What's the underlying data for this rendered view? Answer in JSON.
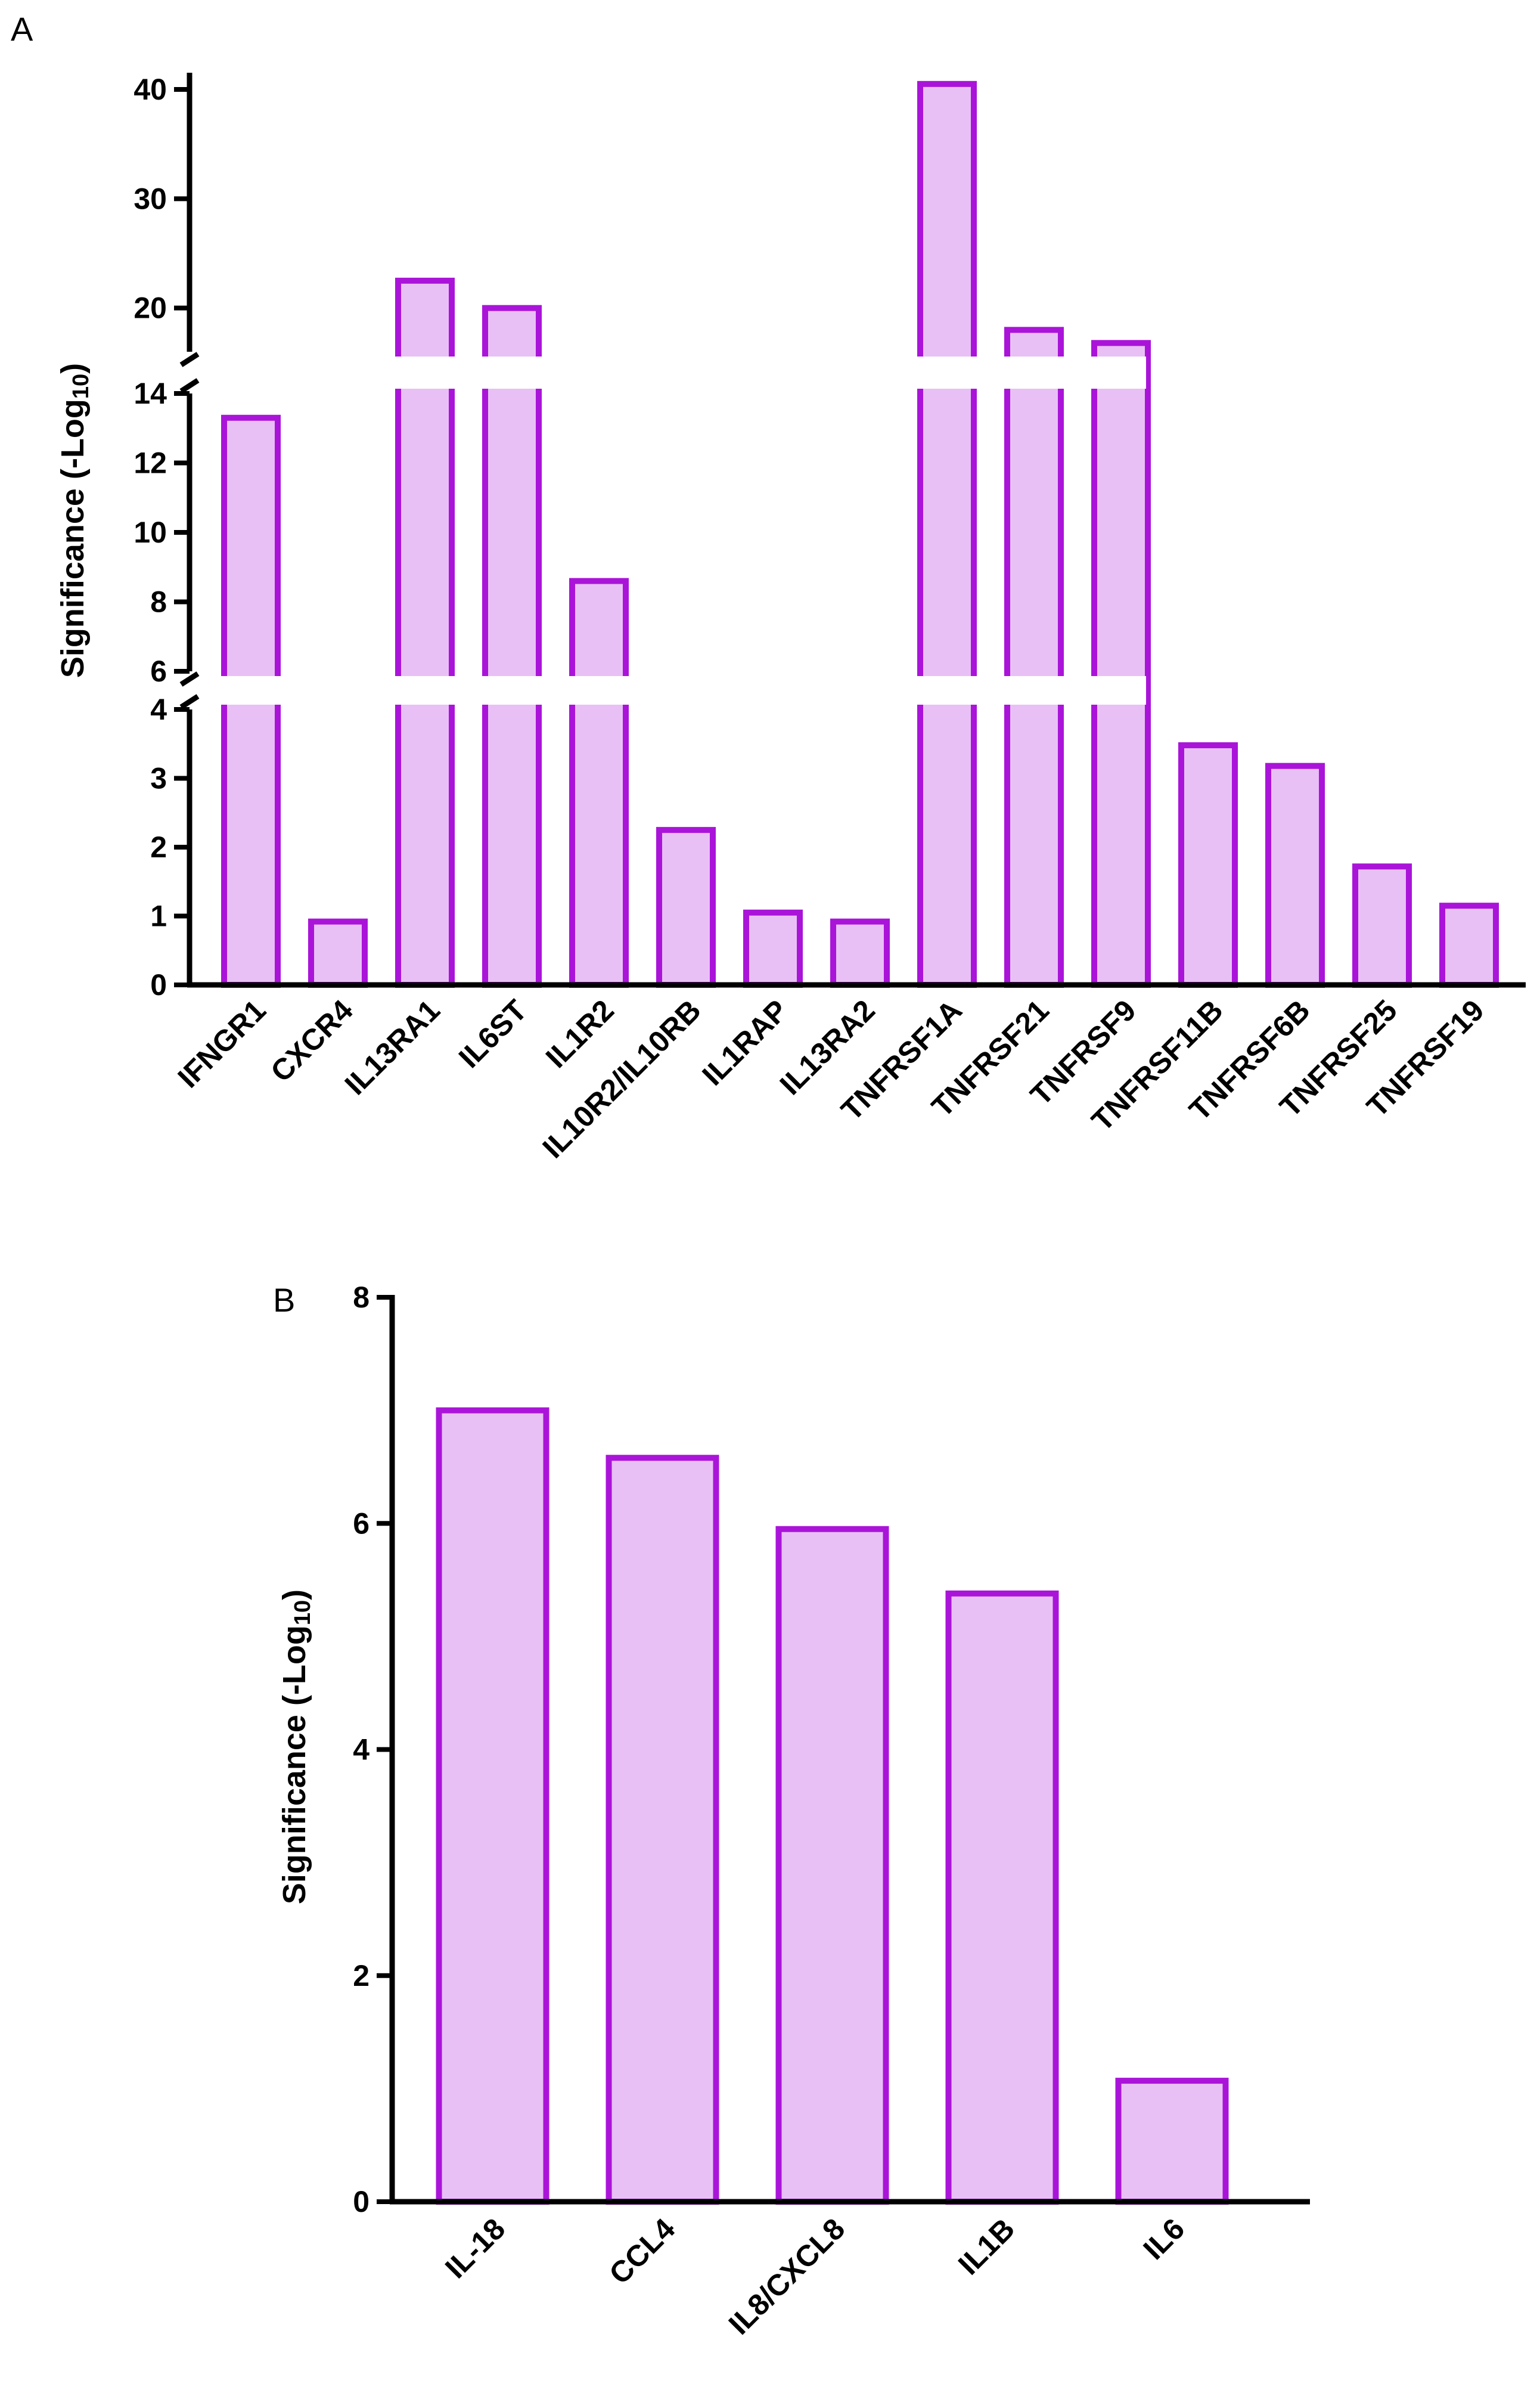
{
  "colors": {
    "bar_fill": "#e8c0f5",
    "bar_stroke": "#aa14d9",
    "axis": "#000000"
  },
  "chart_data": [
    {
      "panel": "A",
      "type": "bar",
      "ylabel_main": "Significance (-Log",
      "ylabel_sub": "10",
      "ylabel_close": ")",
      "y_axis_breaks": [
        [
          4,
          6
        ],
        [
          14,
          16
        ]
      ],
      "segments": [
        {
          "range": [
            0,
            4
          ],
          "ticks": [
            0,
            1,
            2,
            3,
            4
          ]
        },
        {
          "range": [
            6,
            14
          ],
          "ticks": [
            6,
            8,
            10,
            12,
            14
          ]
        },
        {
          "range": [
            16,
            40
          ],
          "ticks": [
            20,
            30,
            40
          ]
        }
      ],
      "categories": [
        "IFNGR1",
        "CXCR4",
        "IL13RA1",
        "IL6ST",
        "IL1R2",
        "IL10R2/IL10RB",
        "IL1RAP",
        "IL13RA2",
        "TNFRSF1A",
        "TNFRSF21",
        "TNFRSF9",
        "TNFRSF11B",
        "TNFRSF6B",
        "TNFRSF25",
        "TNFRSF19"
      ],
      "values": [
        13.3,
        0.92,
        22.5,
        20.0,
        8.6,
        2.25,
        1.05,
        0.92,
        40.5,
        18.0,
        16.8,
        3.48,
        3.18,
        1.72,
        1.15
      ]
    },
    {
      "panel": "B",
      "type": "bar",
      "ylabel_main": "Significance (-Log",
      "ylabel_sub": "10",
      "ylabel_close": ")",
      "ylim": [
        0,
        8
      ],
      "ticks": [
        0,
        2,
        4,
        6,
        8
      ],
      "categories": [
        "IL-18",
        "CCL4",
        "IL8/CXCL8",
        "IL1B",
        "IL6"
      ],
      "values": [
        7.0,
        6.58,
        5.95,
        5.38,
        1.07
      ]
    }
  ]
}
